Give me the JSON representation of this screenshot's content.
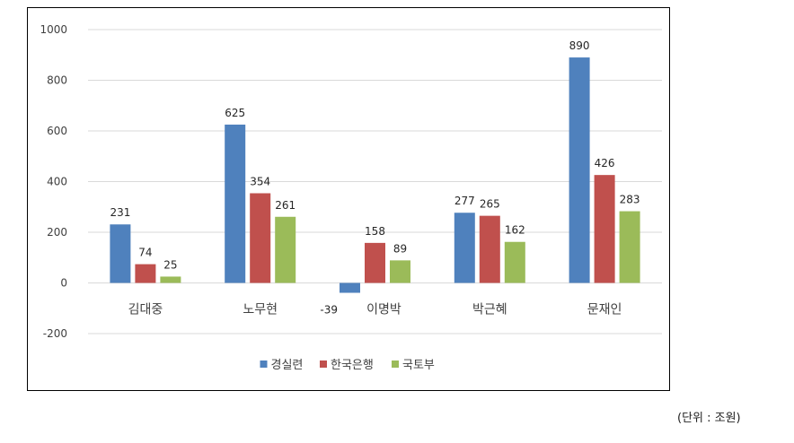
{
  "chart_data": {
    "type": "bar",
    "categories": [
      "김대중",
      "노무현",
      "이명박",
      "박근혜",
      "문재인"
    ],
    "series": [
      {
        "name": "경실련",
        "color": "#4f81bd",
        "values": [
          231,
          625,
          -39,
          277,
          890
        ]
      },
      {
        "name": "한국은행",
        "color": "#c0504d",
        "values": [
          74,
          354,
          158,
          265,
          426
        ]
      },
      {
        "name": "국토부",
        "color": "#9bbb59",
        "values": [
          25,
          261,
          89,
          162,
          283
        ]
      }
    ],
    "yticks": [
      -200,
      0,
      200,
      400,
      600,
      800,
      1000
    ],
    "ylim": [
      -200,
      1000
    ],
    "grid": true,
    "legend": "bottom",
    "title": "",
    "xlabel": "",
    "ylabel": ""
  },
  "unit_note": "(단위 : 조원)"
}
